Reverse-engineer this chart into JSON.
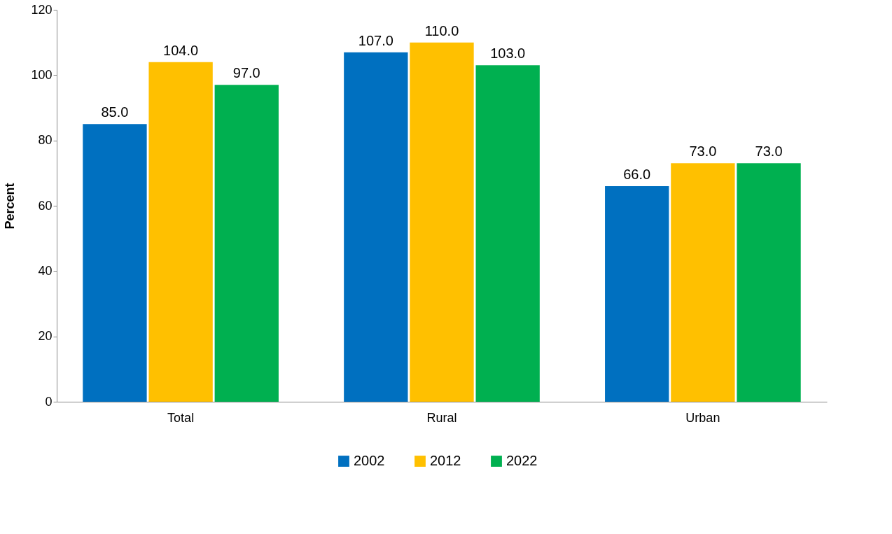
{
  "chart_data": {
    "type": "bar",
    "ylabel": "Percent",
    "categories": [
      "Total",
      "Rural",
      "Urban"
    ],
    "series": [
      {
        "name": "2002",
        "color": "#0070c0",
        "values": [
          85,
          107,
          66
        ],
        "value_labels": [
          "85.0",
          "107.0",
          "66.0"
        ]
      },
      {
        "name": "2012",
        "color": "#ffc000",
        "values": [
          104,
          110,
          73
        ],
        "value_labels": [
          "104.0",
          "110.0",
          "73.0"
        ]
      },
      {
        "name": "2022",
        "color": "#00b050",
        "values": [
          97,
          103,
          73
        ],
        "value_labels": [
          "97.0",
          "103.0",
          "73.0"
        ]
      }
    ],
    "ylim": [
      0,
      120
    ],
    "yticks": [
      0,
      20,
      40,
      60,
      80,
      100,
      120
    ],
    "grid": false,
    "legend": "bottom"
  }
}
